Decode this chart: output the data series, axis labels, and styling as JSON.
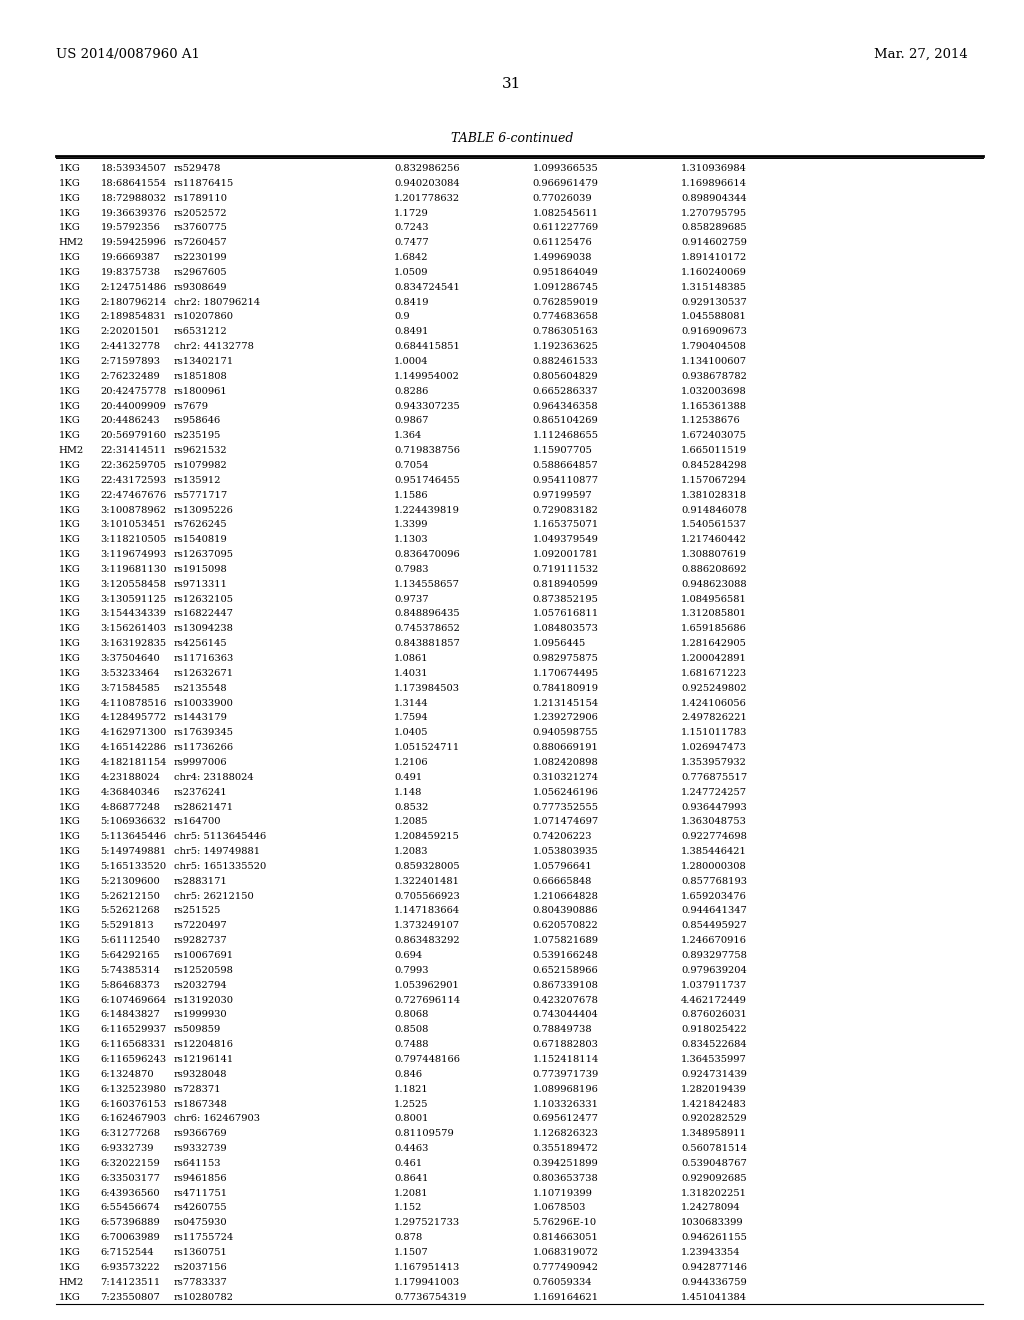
{
  "header_left": "US 2014/0087960 A1",
  "header_right": "Mar. 27, 2014",
  "page_number": "31",
  "table_title": "TABLE 6-continued",
  "rows": [
    [
      "1KG",
      "18:53934507",
      "rs529478",
      "0.832986256",
      "1.099366535",
      "1.310936984"
    ],
    [
      "1KG",
      "18:68641554",
      "rs11876415",
      "0.940203084",
      "0.966961479",
      "1.169896614"
    ],
    [
      "1KG",
      "18:72988032",
      "rs1789110",
      "1.201778632",
      "0.77026039",
      "0.898904344"
    ],
    [
      "1KG",
      "19:36639376",
      "rs2052572",
      "1.1729",
      "1.082545611",
      "1.270795795"
    ],
    [
      "1KG",
      "19:5792356",
      "rs3760775",
      "0.7243",
      "0.611227769",
      "0.858289685"
    ],
    [
      "HM2",
      "19:59425996",
      "rs7260457",
      "0.7477",
      "0.61125476",
      "0.914602759"
    ],
    [
      "1KG",
      "19:6669387",
      "rs2230199",
      "1.6842",
      "1.49969038",
      "1.891410172"
    ],
    [
      "1KG",
      "19:8375738",
      "rs2967605",
      "1.0509",
      "0.951864049",
      "1.160240069"
    ],
    [
      "1KG",
      "2:124751486",
      "rs9308649",
      "0.834724541",
      "1.091286745",
      "1.315148385"
    ],
    [
      "1KG",
      "2:180796214",
      "chr2: 180796214",
      "0.8419",
      "0.762859019",
      "0.929130537"
    ],
    [
      "1KG",
      "2:189854831",
      "rs10207860",
      "0.9",
      "0.774683658",
      "1.045588081"
    ],
    [
      "1KG",
      "2:20201501",
      "rs6531212",
      "0.8491",
      "0.786305163",
      "0.916909673"
    ],
    [
      "1KG",
      "2:44132778",
      "chr2: 44132778",
      "0.684415851",
      "1.192363625",
      "1.790404508"
    ],
    [
      "1KG",
      "2:71597893",
      "rs13402171",
      "1.0004",
      "0.882461533",
      "1.134100607"
    ],
    [
      "1KG",
      "2:76232489",
      "rs1851808",
      "1.149954002",
      "0.805604829",
      "0.938678782"
    ],
    [
      "1KG",
      "20:42475778",
      "rs1800961",
      "0.8286",
      "0.665286337",
      "1.032003698"
    ],
    [
      "1KG",
      "20:44009909",
      "rs7679",
      "0.943307235",
      "0.964346358",
      "1.165361388"
    ],
    [
      "1KG",
      "20:4486243",
      "rs958646",
      "0.9867",
      "0.865104269",
      "1.12538676"
    ],
    [
      "1KG",
      "20:56979160",
      "rs235195",
      "1.364",
      "1.112468655",
      "1.672403075"
    ],
    [
      "HM2",
      "22:31414511",
      "rs9621532",
      "0.719838756",
      "1.15907705",
      "1.665011519"
    ],
    [
      "1KG",
      "22:36259705",
      "rs1079982",
      "0.7054",
      "0.588664857",
      "0.845284298"
    ],
    [
      "1KG",
      "22:43172593",
      "rs135912",
      "0.951746455",
      "0.954110877",
      "1.157067294"
    ],
    [
      "1KG",
      "22:47467676",
      "rs5771717",
      "1.1586",
      "0.97199597",
      "1.381028318"
    ],
    [
      "1KG",
      "3:100878962",
      "rs13095226",
      "1.224439819",
      "0.729083182",
      "0.914846078"
    ],
    [
      "1KG",
      "3:101053451",
      "rs7626245",
      "1.3399",
      "1.165375071",
      "1.540561537"
    ],
    [
      "1KG",
      "3:118210505",
      "rs1540819",
      "1.1303",
      "1.049379549",
      "1.217460442"
    ],
    [
      "1KG",
      "3:119674993",
      "rs12637095",
      "0.836470096",
      "1.092001781",
      "1.308807619"
    ],
    [
      "1KG",
      "3:119681130",
      "rs1915098",
      "0.7983",
      "0.719111532",
      "0.886208692"
    ],
    [
      "1KG",
      "3:120558458",
      "rs9713311",
      "1.134558657",
      "0.818940599",
      "0.948623088"
    ],
    [
      "1KG",
      "3:130591125",
      "rs12632105",
      "0.9737",
      "0.873852195",
      "1.084956581"
    ],
    [
      "1KG",
      "3:154434339",
      "rs16822447",
      "0.848896435",
      "1.057616811",
      "1.312085801"
    ],
    [
      "1KG",
      "3:156261403",
      "rs13094238",
      "0.745378652",
      "1.084803573",
      "1.659185686"
    ],
    [
      "1KG",
      "3:163192835",
      "rs4256145",
      "0.843881857",
      "1.0956445",
      "1.281642905"
    ],
    [
      "1KG",
      "3:37504640",
      "rs11716363",
      "1.0861",
      "0.982975875",
      "1.200042891"
    ],
    [
      "1KG",
      "3:53233464",
      "rs12632671",
      "1.4031",
      "1.170674495",
      "1.681671223"
    ],
    [
      "1KG",
      "3:71584585",
      "rs2135548",
      "1.173984503",
      "0.784180919",
      "0.925249802"
    ],
    [
      "1KG",
      "4:110878516",
      "rs10033900",
      "1.3144",
      "1.213145154",
      "1.424106056"
    ],
    [
      "1KG",
      "4:128495772",
      "rs1443179",
      "1.7594",
      "1.239272906",
      "2.497826221"
    ],
    [
      "1KG",
      "4:162971300",
      "rs17639345",
      "1.0405",
      "0.940598755",
      "1.151011783"
    ],
    [
      "1KG",
      "4:165142286",
      "rs11736266",
      "1.051524711",
      "0.880669191",
      "1.026947473"
    ],
    [
      "1KG",
      "4:182181154",
      "rs9997006",
      "1.2106",
      "1.082420898",
      "1.353957932"
    ],
    [
      "1KG",
      "4:23188024",
      "chr4: 23188024",
      "0.491",
      "0.310321274",
      "0.776875517"
    ],
    [
      "1KG",
      "4:36840346",
      "rs2376241",
      "1.148",
      "1.056246196",
      "1.247724257"
    ],
    [
      "1KG",
      "4:86877248",
      "rs28621471",
      "0.8532",
      "0.777352555",
      "0.936447993"
    ],
    [
      "1KG",
      "5:106936632",
      "rs164700",
      "1.2085",
      "1.071474697",
      "1.363048753"
    ],
    [
      "1KG",
      "5:113645446",
      "chr5: 5113645446",
      "1.208459215",
      "0.74206223",
      "0.922774698"
    ],
    [
      "1KG",
      "5:149749881",
      "chr5: 149749881",
      "1.2083",
      "1.053803935",
      "1.385446421"
    ],
    [
      "1KG",
      "5:165133520",
      "chr5: 1651335520",
      "0.859328005",
      "1.05796641",
      "1.280000308"
    ],
    [
      "1KG",
      "5:21309600",
      "rs2883171",
      "1.322401481",
      "0.66665848",
      "0.857768193"
    ],
    [
      "1KG",
      "5:26212150",
      "chr5: 26212150",
      "0.705566923",
      "1.210664828",
      "1.659203476"
    ],
    [
      "1KG",
      "5:52621268",
      "rs251525",
      "1.147183664",
      "0.804390886",
      "0.944641347"
    ],
    [
      "1KG",
      "5:5291813",
      "rs7220497",
      "1.373249107",
      "0.620570822",
      "0.854495927"
    ],
    [
      "1KG",
      "5:61112540",
      "rs9282737",
      "0.863483292",
      "1.075821689",
      "1.246670916"
    ],
    [
      "1KG",
      "5:64292165",
      "rs10067691",
      "0.694",
      "0.539166248",
      "0.893297758"
    ],
    [
      "1KG",
      "5:74385314",
      "rs12520598",
      "0.7993",
      "0.652158966",
      "0.979639204"
    ],
    [
      "1KG",
      "5:86468373",
      "rs2032794",
      "1.053962901",
      "0.867339108",
      "1.037911737"
    ],
    [
      "1KG",
      "6:107469664",
      "rs13192030",
      "0.727696114",
      "0.423207678",
      "4.462172449"
    ],
    [
      "1KG",
      "6:14843827",
      "rs1999930",
      "0.8068",
      "0.743044404",
      "0.876026031"
    ],
    [
      "1KG",
      "6:116529937",
      "rs509859",
      "0.8508",
      "0.78849738",
      "0.918025422"
    ],
    [
      "1KG",
      "6:116568331",
      "rs12204816",
      "0.7488",
      "0.671882803",
      "0.834522684"
    ],
    [
      "1KG",
      "6:116596243",
      "rs12196141",
      "0.797448166",
      "1.152418114",
      "1.364535997"
    ],
    [
      "1KG",
      "6:1324870",
      "rs9328048",
      "0.846",
      "0.773971739",
      "0.924731439"
    ],
    [
      "1KG",
      "6:132523980",
      "rs728371",
      "1.1821",
      "1.089968196",
      "1.282019439"
    ],
    [
      "1KG",
      "6:160376153",
      "rs1867348",
      "1.2525",
      "1.103326331",
      "1.421842483"
    ],
    [
      "1KG",
      "6:162467903",
      "chr6: 162467903",
      "0.8001",
      "0.695612477",
      "0.920282529"
    ],
    [
      "1KG",
      "6:31277268",
      "rs9366769",
      "0.81109579",
      "1.126826323",
      "1.348958911"
    ],
    [
      "1KG",
      "6:9332739",
      "rs9332739",
      "0.4463",
      "0.355189472",
      "0.560781514"
    ],
    [
      "1KG",
      "6:32022159",
      "rs641153",
      "0.461",
      "0.394251899",
      "0.539048767"
    ],
    [
      "1KG",
      "6:33503177",
      "rs9461856",
      "0.8641",
      "0.803653738",
      "0.929092685"
    ],
    [
      "1KG",
      "6:43936560",
      "rs4711751",
      "1.2081",
      "1.10719399",
      "1.318202251"
    ],
    [
      "1KG",
      "6:55456674",
      "rs4260755",
      "1.152",
      "1.0678503",
      "1.24278094"
    ],
    [
      "1KG",
      "6:57396889",
      "rs0475930",
      "1.297521733",
      "5.76296E-10",
      "1030683399"
    ],
    [
      "1KG",
      "6:70063989",
      "rs11755724",
      "0.878",
      "0.814663051",
      "0.946261155"
    ],
    [
      "1KG",
      "6:7152544",
      "rs1360751",
      "1.1507",
      "1.068319072",
      "1.23943354"
    ],
    [
      "1KG",
      "6:93573222",
      "rs2037156",
      "1.167951413",
      "0.777490942",
      "0.942877146"
    ],
    [
      "HM2",
      "7:14123511",
      "rs7783337",
      "1.179941003",
      "0.76059334",
      "0.944336759"
    ],
    [
      "1KG",
      "7:23550807",
      "rs10280782",
      "0.7736754319",
      "1.169164621",
      "1.451041384"
    ]
  ]
}
